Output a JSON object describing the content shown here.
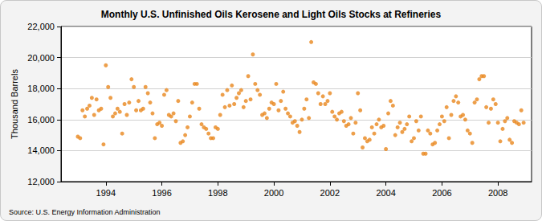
{
  "chart_data": {
    "type": "scatter",
    "title": "Monthly U.S. Unfinished Oils Kerosene and Light Oils Stocks at Refineries",
    "y_label": "Thousand Barrels",
    "source": "Source: U.S. Energy Information Administration",
    "color": "#e8871e",
    "marker": "circle",
    "grid": true,
    "xlim": [
      1992.4,
      2009.2
    ],
    "xticks": [
      1994,
      1996,
      1998,
      2000,
      2002,
      2004,
      2006,
      2008
    ],
    "ylim": [
      12000,
      22000
    ],
    "yticks": [
      {
        "value": 12000,
        "label": "12,000"
      },
      {
        "value": 14000,
        "label": "14,000"
      },
      {
        "value": 16000,
        "label": "16,000"
      },
      {
        "value": 18000,
        "label": "18,000"
      },
      {
        "value": 20000,
        "label": "20,000"
      },
      {
        "value": 22000,
        "label": "22,000"
      }
    ],
    "x": [
      1993.0,
      1993.083,
      1993.167,
      1993.25,
      1993.333,
      1993.417,
      1993.5,
      1993.583,
      1993.667,
      1993.75,
      1993.833,
      1993.917,
      1994.0,
      1994.083,
      1994.167,
      1994.25,
      1994.333,
      1994.417,
      1994.5,
      1994.583,
      1994.667,
      1994.75,
      1994.833,
      1994.917,
      1995.0,
      1995.083,
      1995.167,
      1995.25,
      1995.333,
      1995.417,
      1995.5,
      1995.583,
      1995.667,
      1995.75,
      1995.833,
      1995.917,
      1996.0,
      1996.083,
      1996.167,
      1996.25,
      1996.333,
      1996.417,
      1996.5,
      1996.583,
      1996.667,
      1996.75,
      1996.833,
      1996.917,
      1997.0,
      1997.083,
      1997.167,
      1997.25,
      1997.333,
      1997.417,
      1997.5,
      1997.583,
      1997.667,
      1997.75,
      1997.833,
      1997.917,
      1998.0,
      1998.083,
      1998.167,
      1998.25,
      1998.333,
      1998.417,
      1998.5,
      1998.583,
      1998.667,
      1998.75,
      1998.833,
      1998.917,
      1999.0,
      1999.083,
      1999.167,
      1999.25,
      1999.333,
      1999.417,
      1999.5,
      1999.583,
      1999.667,
      1999.75,
      1999.833,
      1999.917,
      2000.0,
      2000.083,
      2000.167,
      2000.25,
      2000.333,
      2000.417,
      2000.5,
      2000.583,
      2000.667,
      2000.75,
      2000.833,
      2000.917,
      2001.0,
      2001.083,
      2001.167,
      2001.25,
      2001.333,
      2001.417,
      2001.5,
      2001.583,
      2001.667,
      2001.75,
      2001.833,
      2001.917,
      2002.0,
      2002.083,
      2002.167,
      2002.25,
      2002.333,
      2002.417,
      2002.5,
      2002.583,
      2002.667,
      2002.75,
      2002.833,
      2002.917,
      2003.0,
      2003.083,
      2003.167,
      2003.25,
      2003.333,
      2003.417,
      2003.5,
      2003.583,
      2003.667,
      2003.75,
      2003.833,
      2003.917,
      2004.0,
      2004.083,
      2004.167,
      2004.25,
      2004.333,
      2004.417,
      2004.5,
      2004.583,
      2004.667,
      2004.75,
      2004.833,
      2004.917,
      2005.0,
      2005.083,
      2005.167,
      2005.25,
      2005.333,
      2005.417,
      2005.5,
      2005.583,
      2005.667,
      2005.75,
      2005.833,
      2005.917,
      2006.0,
      2006.083,
      2006.167,
      2006.25,
      2006.333,
      2006.417,
      2006.5,
      2006.583,
      2006.667,
      2006.75,
      2006.833,
      2006.917,
      2007.0,
      2007.083,
      2007.167,
      2007.25,
      2007.333,
      2007.417,
      2007.5,
      2007.583,
      2007.667,
      2007.75,
      2007.833,
      2007.917,
      2008.0,
      2008.083,
      2008.167,
      2008.25,
      2008.333,
      2008.417,
      2008.5,
      2008.583,
      2008.667,
      2008.75,
      2008.833,
      2008.917
    ],
    "values": [
      14900,
      14800,
      16600,
      16200,
      16700,
      16900,
      17400,
      16300,
      17300,
      16600,
      16700,
      14400,
      19500,
      18100,
      17400,
      16200,
      16400,
      16700,
      16500,
      15100,
      17000,
      16300,
      17100,
      18600,
      18100,
      16600,
      17200,
      16600,
      16700,
      18100,
      17700,
      17100,
      16400,
      14800,
      15700,
      15800,
      15600,
      17600,
      17900,
      16300,
      16200,
      16400,
      15900,
      17200,
      14500,
      14600,
      15000,
      15500,
      16200,
      17100,
      18300,
      18300,
      16700,
      15700,
      15500,
      15400,
      15100,
      14800,
      14800,
      15500,
      15400,
      16300,
      17600,
      16800,
      17900,
      16900,
      18200,
      17000,
      17400,
      17700,
      17900,
      16800,
      17200,
      18800,
      17300,
      20200,
      18300,
      17900,
      17600,
      16300,
      16400,
      16100,
      16700,
      17100,
      17000,
      18300,
      16600,
      17200,
      17800,
      16700,
      16400,
      16200,
      15800,
      15900,
      15600,
      15200,
      16000,
      16700,
      17300,
      16100,
      21000,
      18400,
      18300,
      17700,
      17000,
      17500,
      17000,
      17200,
      17700,
      16500,
      16200,
      16000,
      16400,
      16500,
      15900,
      15600,
      15700,
      16100,
      15100,
      15800,
      17700,
      16600,
      14200,
      14800,
      14600,
      14700,
      15500,
      15100,
      15700,
      16000,
      15500,
      15600,
      14100,
      16400,
      17200,
      16900,
      15000,
      15500,
      15800,
      15200,
      15400,
      15700,
      16200,
      14600,
      14800,
      15900,
      15300,
      16200,
      13800,
      13800,
      15300,
      15100,
      14400,
      14500,
      15300,
      15700,
      16200,
      15900,
      16800,
      14800,
      16300,
      17200,
      17500,
      17100,
      16200,
      16300,
      16000,
      15300,
      15100,
      14500,
      17100,
      17300,
      18600,
      18800,
      18800,
      16800,
      15800,
      16700,
      17300,
      17000,
      15800,
      14600,
      15400,
      15900,
      16100,
      14700,
      14500,
      15900,
      15800,
      15700,
      16600,
      15800
    ]
  }
}
